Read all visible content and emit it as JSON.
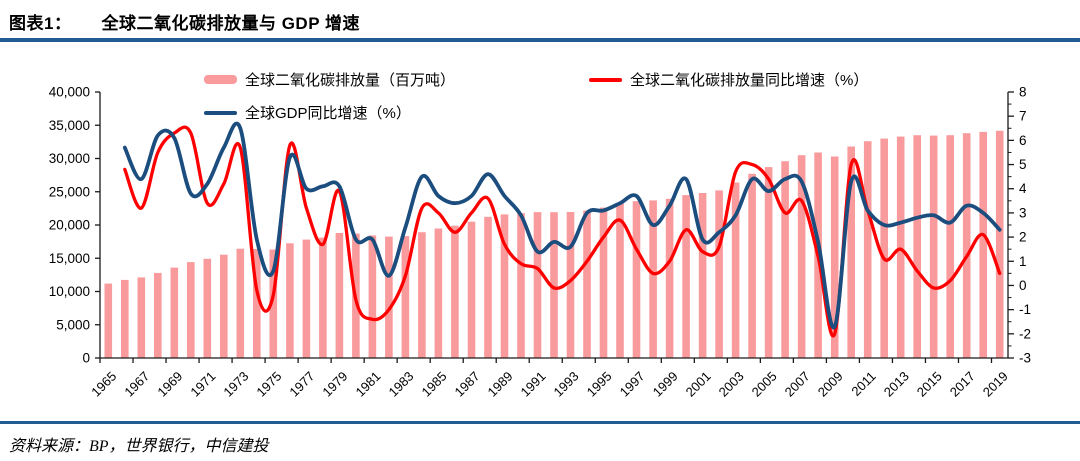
{
  "header": {
    "label": "图表1：",
    "title": "全球二氧化碳排放量与 GDP 增速"
  },
  "footer": {
    "source": "资料来源：BP，世界银行，中信建投"
  },
  "colors": {
    "bar_fill": "#F99B9C",
    "co2_growth_line": "#FE0000",
    "gdp_growth_line": "#1B4D7E",
    "rule": "#235C92",
    "axis": "#1a1a1a",
    "text": "#000000"
  },
  "chart_data": {
    "type": "bar+line combo",
    "title": "全球二氧化碳排放量与 GDP 增速",
    "grid": false,
    "legend_position": "top",
    "x": [
      1965,
      1966,
      1967,
      1968,
      1969,
      1970,
      1971,
      1972,
      1973,
      1974,
      1975,
      1976,
      1977,
      1978,
      1979,
      1980,
      1981,
      1982,
      1983,
      1984,
      1985,
      1986,
      1987,
      1988,
      1989,
      1990,
      1991,
      1992,
      1993,
      1994,
      1995,
      1996,
      1997,
      1998,
      1999,
      2000,
      2001,
      2002,
      2003,
      2004,
      2005,
      2006,
      2007,
      2008,
      2009,
      2010,
      2011,
      2012,
      2013,
      2014,
      2015,
      2016,
      2017,
      2018,
      2019
    ],
    "x_tick_labels": [
      "1965",
      "1967",
      "1969",
      "1971",
      "1973",
      "1975",
      "1977",
      "1979",
      "1981",
      "1983",
      "1985",
      "1987",
      "1989",
      "1991",
      "1993",
      "1995",
      "1997",
      "1999",
      "2001",
      "2003",
      "2005",
      "2007",
      "2009",
      "2011",
      "2013",
      "2015",
      "2017",
      "2019"
    ],
    "left_axis": {
      "min": 0,
      "max": 40000,
      "step": 5000,
      "tick_labels": [
        "0",
        "5,000",
        "10,000",
        "15,000",
        "20,000",
        "25,000",
        "30,000",
        "35,000",
        "40,000"
      ]
    },
    "right_axis": {
      "min": -3,
      "max": 8,
      "step": 1,
      "minor_step": 0.5,
      "tick_labels": [
        "-3",
        "-2",
        "-1",
        "0",
        "1",
        "2",
        "3",
        "4",
        "5",
        "6",
        "7",
        "8"
      ]
    },
    "series": [
      {
        "name": "全球二氧化碳排放量（百万吨）",
        "type": "bar",
        "axis": "left",
        "color": "#F99B9C",
        "start_year": 1965,
        "values": [
          11190,
          11740,
          12120,
          12790,
          13590,
          14420,
          14910,
          15530,
          16430,
          16390,
          16320,
          17250,
          17800,
          18100,
          18800,
          18700,
          18440,
          18260,
          18330,
          18910,
          19480,
          19900,
          20500,
          21240,
          21600,
          21790,
          21940,
          21920,
          21960,
          22180,
          22620,
          23230,
          23580,
          23700,
          23940,
          24490,
          24810,
          25200,
          26390,
          27700,
          28700,
          29600,
          30500,
          30900,
          30300,
          31800,
          32600,
          33000,
          33300,
          33500,
          33450,
          33500,
          33800,
          34000,
          34170
        ]
      },
      {
        "name": "全球二氧化碳排放量同比增速（%）",
        "type": "line",
        "axis": "right",
        "color": "#FE0000",
        "start_year": 1966,
        "values": [
          4.8,
          3.2,
          5.5,
          6.3,
          6.3,
          3.4,
          4.2,
          5.7,
          -0.2,
          -0.4,
          5.8,
          3.2,
          1.7,
          3.9,
          -0.6,
          -1.4,
          -1.0,
          0.4,
          3.2,
          3.0,
          2.2,
          3.0,
          3.6,
          1.7,
          0.9,
          0.7,
          -0.1,
          0.2,
          1.0,
          2.0,
          2.7,
          1.5,
          0.5,
          1.0,
          2.3,
          1.4,
          1.6,
          4.7,
          5.0,
          4.4,
          3.0,
          3.5,
          1.2,
          -2.0,
          5.0,
          3.1,
          1.1,
          1.5,
          0.6,
          -0.1,
          0.2,
          1.2,
          2.1,
          0.5
        ]
      },
      {
        "name": "全球GDP同比增速（%）",
        "type": "line",
        "axis": "right",
        "color": "#1B4D7E",
        "start_year": 1966,
        "values": [
          5.7,
          4.4,
          6.2,
          6.1,
          3.8,
          4.2,
          5.7,
          6.5,
          1.9,
          0.6,
          5.3,
          4.0,
          4.1,
          4.1,
          1.9,
          1.9,
          0.4,
          2.4,
          4.5,
          3.7,
          3.4,
          3.7,
          4.6,
          3.7,
          2.9,
          1.4,
          1.8,
          1.6,
          3.0,
          3.1,
          3.4,
          3.7,
          2.5,
          3.3,
          4.4,
          1.9,
          2.2,
          2.9,
          4.4,
          3.9,
          4.4,
          4.3,
          1.8,
          -1.7,
          4.3,
          3.1,
          2.5,
          2.6,
          2.8,
          2.9,
          2.6,
          3.3,
          3.0,
          2.3
        ]
      }
    ]
  }
}
